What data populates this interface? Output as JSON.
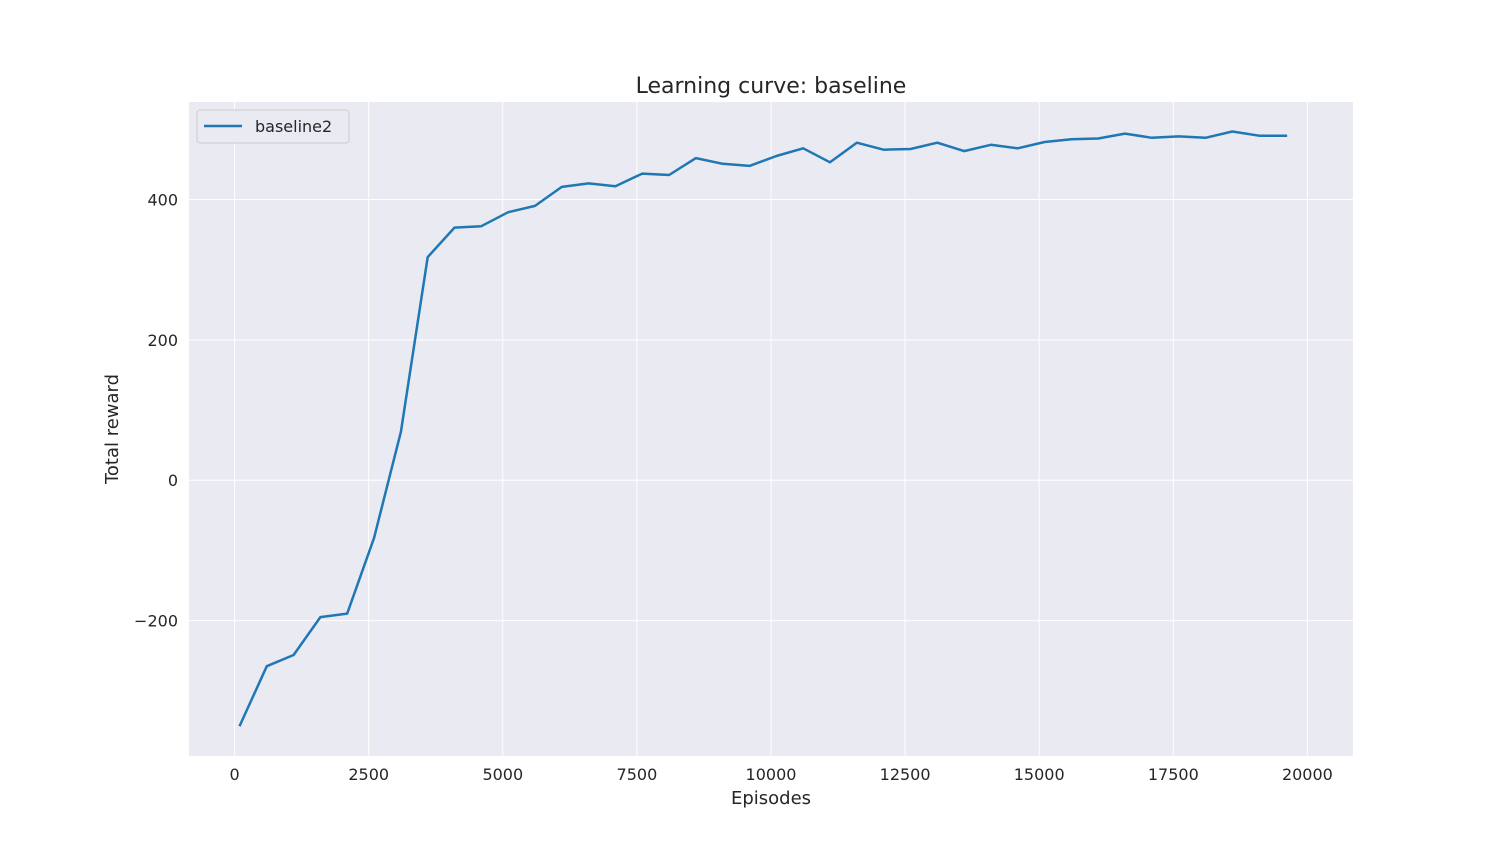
{
  "chart_data": {
    "type": "line",
    "title": "Learning curve: baseline",
    "xlabel": "Episodes",
    "ylabel": "Total reward",
    "xlim": [
      -850,
      20850
    ],
    "ylim": [
      -393,
      539
    ],
    "xticks": [
      0,
      2500,
      5000,
      7500,
      10000,
      12500,
      15000,
      17500,
      20000
    ],
    "yticks": [
      -200,
      0,
      200,
      400
    ],
    "xtick_labels": [
      "0",
      "2500",
      "5000",
      "7500",
      "10000",
      "12500",
      "15000",
      "17500",
      "20000"
    ],
    "ytick_labels": [
      "−200",
      "0",
      "200",
      "400"
    ],
    "grid": true,
    "legend_position": "upper left",
    "background_color": "#eaeaf2",
    "grid_color": "#ffffff",
    "series": [
      {
        "name": "baseline2",
        "color": "#1f77b4",
        "x": [
          100,
          600,
          1100,
          1600,
          2100,
          2600,
          3100,
          3600,
          4100,
          4600,
          5100,
          5600,
          6100,
          6600,
          7100,
          7600,
          8100,
          8600,
          9100,
          9600,
          10100,
          10600,
          11100,
          11600,
          12100,
          12600,
          13100,
          13600,
          14100,
          14600,
          15100,
          15600,
          16100,
          16600,
          17100,
          17600,
          18100,
          18600,
          19100,
          19600
        ],
        "y": [
          -349,
          -265,
          -249,
          -195,
          -190,
          -82,
          69,
          318,
          360,
          362,
          382,
          391,
          418,
          423,
          419,
          437,
          435,
          459,
          451,
          448,
          462,
          473,
          453,
          481,
          471,
          472,
          481,
          469,
          478,
          473,
          482,
          486,
          487,
          494,
          488,
          490,
          488,
          497,
          491,
          491
        ]
      }
    ]
  }
}
